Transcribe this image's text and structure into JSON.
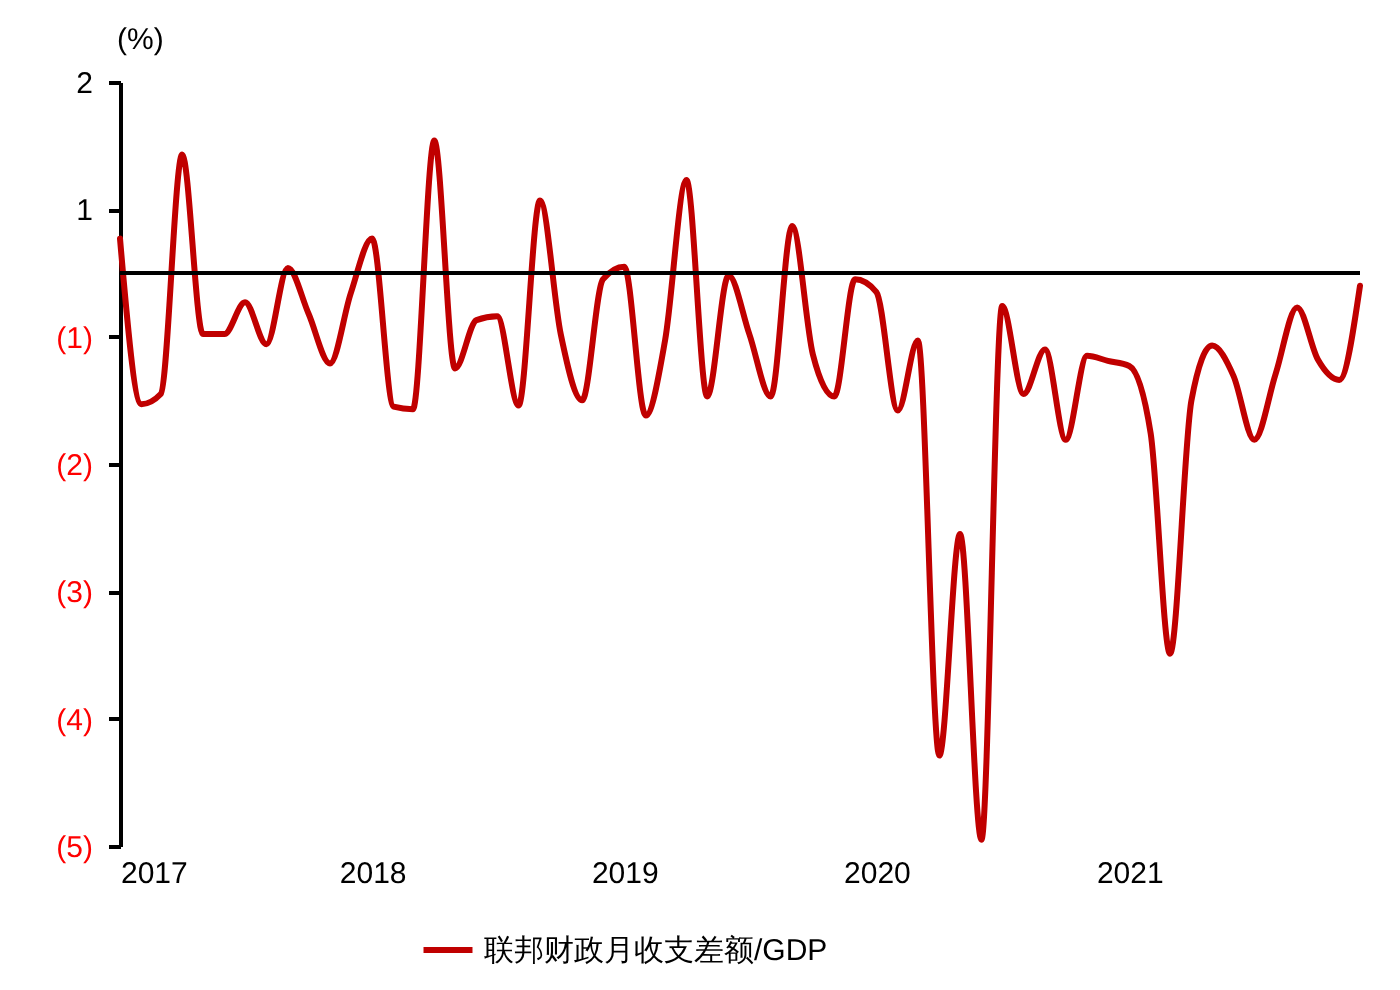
{
  "chart_data": {
    "type": "line",
    "ylabel": "(%)",
    "x": [
      "2017-01",
      "2017-02",
      "2017-03",
      "2017-04",
      "2017-05",
      "2017-06",
      "2017-07",
      "2017-08",
      "2017-09",
      "2017-10",
      "2017-11",
      "2017-12",
      "2018-01",
      "2018-02",
      "2018-03",
      "2018-04",
      "2018-05",
      "2018-06",
      "2018-07",
      "2018-08",
      "2018-09",
      "2018-10",
      "2018-11",
      "2018-12",
      "2019-01",
      "2019-02",
      "2019-03",
      "2019-04",
      "2019-05",
      "2019-06",
      "2019-07",
      "2019-08",
      "2019-09",
      "2019-10",
      "2019-11",
      "2019-12",
      "2020-01",
      "2020-02",
      "2020-03",
      "2020-04",
      "2020-05",
      "2020-06",
      "2020-07",
      "2020-08",
      "2020-09",
      "2020-10",
      "2020-11",
      "2020-12",
      "2021-01",
      "2021-02",
      "2021-03",
      "2021-04",
      "2021-05",
      "2021-06",
      "2021-07",
      "2021-08",
      "2021-09",
      "2021-10",
      "2021-11",
      "2021-12"
    ],
    "series": [
      {
        "name": "联邦财政月收支差额/GDP",
        "color": "#c00000",
        "values": [
          0.27,
          -1.03,
          -0.95,
          0.93,
          -0.48,
          -0.48,
          -0.23,
          -0.56,
          0.04,
          -0.32,
          -0.71,
          -0.16,
          0.27,
          -1.05,
          -1.07,
          1.04,
          -0.75,
          -0.37,
          -0.34,
          -1.04,
          0.57,
          -0.48,
          -1.0,
          -0.05,
          0.05,
          -1.12,
          -0.53,
          0.73,
          -0.97,
          -0.02,
          -0.48,
          -0.97,
          0.37,
          -0.64,
          -0.97,
          -0.05,
          -0.15,
          -1.08,
          -0.53,
          -3.79,
          -2.05,
          -4.45,
          -0.26,
          -0.95,
          -0.6,
          -1.31,
          -0.65,
          -0.69,
          -0.73,
          -1.26,
          -2.99,
          -1.0,
          -0.57,
          -0.81,
          -1.31,
          -0.79,
          -0.27,
          -0.68,
          -0.84,
          -0.1
        ]
      }
    ],
    "xlim": [
      "2017-01",
      "2021-12"
    ],
    "xticks": [
      "2017",
      "2018",
      "2019",
      "2020",
      "2021"
    ],
    "ylim": [
      -4.5,
      1.5
    ],
    "yticks": [
      {
        "value": 1.5,
        "label": "2"
      },
      {
        "value": 0.5,
        "label": "1"
      },
      {
        "value": -0.5,
        "label": "(1)"
      },
      {
        "value": -1.5,
        "label": "(2)"
      },
      {
        "value": -2.5,
        "label": "(3)"
      },
      {
        "value": -3.5,
        "label": "(4)"
      },
      {
        "value": -4.5,
        "label": "(5)"
      }
    ],
    "ref_lines": [
      {
        "axis": "y",
        "value": 0,
        "color": "#000000"
      }
    ],
    "legend": "bottom",
    "grid": false,
    "line_style": "solid",
    "marker": "none"
  }
}
